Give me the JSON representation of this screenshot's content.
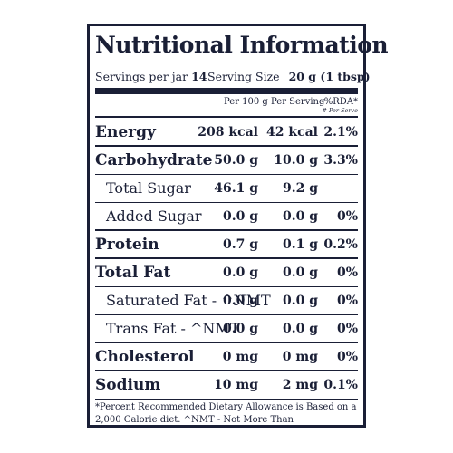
{
  "title": "Nutritional Information",
  "servings": {
    "per_jar_label": "Servings per jar",
    "per_jar_value": "14",
    "size_label": "Serving Size",
    "size_value": "20 g (1 tbsp)"
  },
  "columns": {
    "per100": "Per 100 g",
    "perServing": "Per Serving",
    "rda": "-%RDA*",
    "rda_note": "# Per Serve"
  },
  "rows": [
    {
      "label": "Energy",
      "per100": "208 kcal",
      "perServing": "42 kcal",
      "rda": "2.1%",
      "style": "main"
    },
    {
      "label": "Carbohydrate",
      "per100": "50.0 g",
      "perServing": "10.0 g",
      "rda": "3.3%",
      "style": "main"
    },
    {
      "label": "Total Sugar",
      "per100": "46.1 g",
      "perServing": "9.2 g",
      "rda": "",
      "style": "sub"
    },
    {
      "label": "Added Sugar",
      "per100": "0.0 g",
      "perServing": "0.0 g",
      "rda": "0%",
      "style": "sub"
    },
    {
      "label": "Protein",
      "per100": "0.7 g",
      "perServing": "0.1 g",
      "rda": "0.2%",
      "style": "main"
    },
    {
      "label": "Total Fat",
      "per100": "0.0 g",
      "perServing": "0.0 g",
      "rda": "0%",
      "style": "main"
    },
    {
      "label": "Saturated Fat - ^NMT",
      "per100": "0.0 g",
      "perServing": "0.0 g",
      "rda": "0%",
      "style": "sub"
    },
    {
      "label": "Trans Fat - ^NMT",
      "per100": "0.0 g",
      "perServing": "0.0 g",
      "rda": "0%",
      "style": "sub"
    },
    {
      "label": "Cholesterol",
      "per100": "0 mg",
      "perServing": "0 mg",
      "rda": "0%",
      "style": "main"
    },
    {
      "label": "Sodium",
      "per100": "10 mg",
      "perServing": "2 mg",
      "rda": "0.1%",
      "style": "main"
    }
  ],
  "footnote": "*Percent Recommended Dietary Allowance is Based on a 2,000 Calorie diet. ^NMT - Not More Than",
  "colors": {
    "ink": "#1a1f36",
    "background": "#ffffff"
  }
}
